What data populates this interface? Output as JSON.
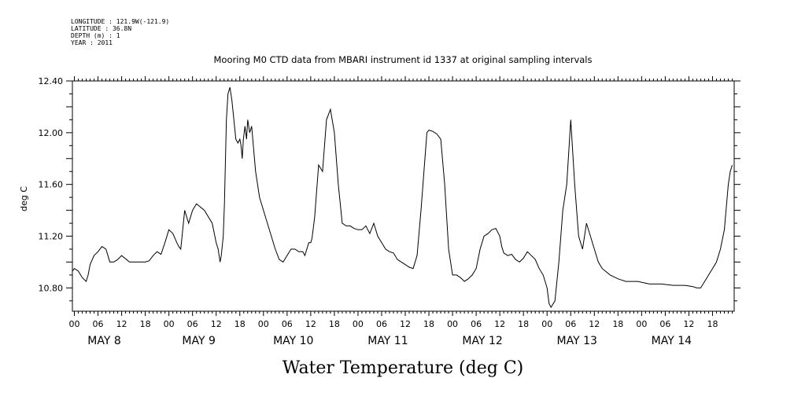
{
  "header": {
    "lines": [
      "LONGITUDE : 121.9W(-121.9)",
      "LATITUDE : 36.8N",
      "DEPTH (m) : 1",
      "YEAR : 2011"
    ]
  },
  "chart_data": {
    "type": "line",
    "title": "Mooring M0 CTD data from MBARI instrument id 1337 at original sampling intervals",
    "xlabel": "Water Temperature (deg C)",
    "ylabel": "deg C",
    "x_unit": "hours since May 8 00:00",
    "xlim": [
      -0.5,
      167.5
    ],
    "ylim": [
      10.62,
      12.4
    ],
    "yticks": [
      "10.80",
      "11.20",
      "11.60",
      "12.00",
      "12.40"
    ],
    "hour_tick_labels": [
      "00",
      "06",
      "12",
      "18"
    ],
    "day_labels": [
      "MAY 8",
      "MAY 9",
      "MAY 10",
      "MAY 11",
      "MAY 12",
      "MAY 13",
      "MAY 14"
    ],
    "grid": false,
    "series": [
      {
        "x": [
          -0.5,
          0,
          1,
          2,
          3,
          3.5,
          4,
          5,
          6,
          7,
          8,
          9,
          10,
          11,
          12,
          14,
          16,
          17,
          18,
          19,
          20,
          21,
          22,
          23,
          24,
          25,
          26,
          26.5,
          27,
          27.5,
          28,
          29,
          30,
          31,
          33,
          35,
          36,
          36.5,
          37,
          37.3,
          37.8,
          38.1,
          38.6,
          39,
          39.5,
          40,
          40.5,
          41,
          41.5,
          42,
          42.3,
          42.6,
          42.9,
          43.3,
          43.7,
          44,
          44.5,
          45,
          46,
          47,
          48,
          49,
          50,
          51,
          52,
          53,
          54,
          55,
          56,
          57,
          58,
          58.5,
          59,
          59.5,
          60,
          60.3,
          60.6,
          61,
          62,
          63,
          64,
          65,
          66,
          67,
          68,
          69,
          70,
          71,
          72,
          73,
          74,
          75,
          76,
          77,
          78,
          79,
          80,
          81,
          82,
          83,
          84,
          85,
          86,
          87,
          88,
          89,
          89.5,
          90,
          91,
          92,
          93,
          94,
          95,
          96,
          97,
          98,
          99,
          100,
          101,
          102,
          103,
          104,
          105,
          106,
          107,
          108,
          108.5,
          109,
          110,
          111,
          112,
          113,
          114,
          115,
          116,
          117,
          118,
          119,
          120,
          120.5,
          121,
          122,
          123,
          124,
          125,
          126,
          127,
          128,
          129,
          130,
          131,
          132,
          133,
          134,
          136,
          138,
          140,
          143,
          146,
          149,
          152,
          155,
          157,
          158,
          159,
          160,
          161,
          162,
          163,
          164,
          165,
          166,
          166.5,
          167
        ],
        "y": [
          10.93,
          10.95,
          10.93,
          10.88,
          10.85,
          10.9,
          10.98,
          11.05,
          11.08,
          11.12,
          11.1,
          11.0,
          11.0,
          11.02,
          11.05,
          11.0,
          11.0,
          11.0,
          11.0,
          11.01,
          11.05,
          11.08,
          11.06,
          11.15,
          11.25,
          11.22,
          11.15,
          11.12,
          11.1,
          11.25,
          11.4,
          11.3,
          11.4,
          11.45,
          11.4,
          11.3,
          11.15,
          11.1,
          11.0,
          11.05,
          11.2,
          11.45,
          12.1,
          12.3,
          12.35,
          12.25,
          12.1,
          11.95,
          11.92,
          11.95,
          11.9,
          11.8,
          11.95,
          12.05,
          11.95,
          12.1,
          12.0,
          12.05,
          11.7,
          11.5,
          11.4,
          11.3,
          11.2,
          11.1,
          11.02,
          11.0,
          11.05,
          11.1,
          11.1,
          11.08,
          11.08,
          11.05,
          11.1,
          11.15,
          11.15,
          11.18,
          11.25,
          11.35,
          11.75,
          11.7,
          12.1,
          12.18,
          12.0,
          11.6,
          11.3,
          11.28,
          11.28,
          11.26,
          11.25,
          11.25,
          11.28,
          11.22,
          11.3,
          11.2,
          11.15,
          11.1,
          11.08,
          11.07,
          11.02,
          11.0,
          10.98,
          10.96,
          10.95,
          11.05,
          11.4,
          11.8,
          12.0,
          12.02,
          12.01,
          11.99,
          11.95,
          11.6,
          11.1,
          10.9,
          10.9,
          10.88,
          10.85,
          10.87,
          10.9,
          10.95,
          11.1,
          11.2,
          11.22,
          11.25,
          11.26,
          11.2,
          11.12,
          11.07,
          11.05,
          11.06,
          11.02,
          11.0,
          11.03,
          11.08,
          11.05,
          11.02,
          10.95,
          10.9,
          10.8,
          10.68,
          10.65,
          10.7,
          11.0,
          11.4,
          11.6,
          12.1,
          11.6,
          11.2,
          11.1,
          11.3,
          11.2,
          11.1,
          11.0,
          10.95,
          10.9,
          10.87,
          10.85,
          10.85,
          10.83,
          10.83,
          10.82,
          10.82,
          10.81,
          10.8,
          10.8,
          10.85,
          10.9,
          10.95,
          11.0,
          11.1,
          11.25,
          11.6,
          11.7,
          11.75
        ],
        "segment_note": "dense series"
      }
    ]
  }
}
